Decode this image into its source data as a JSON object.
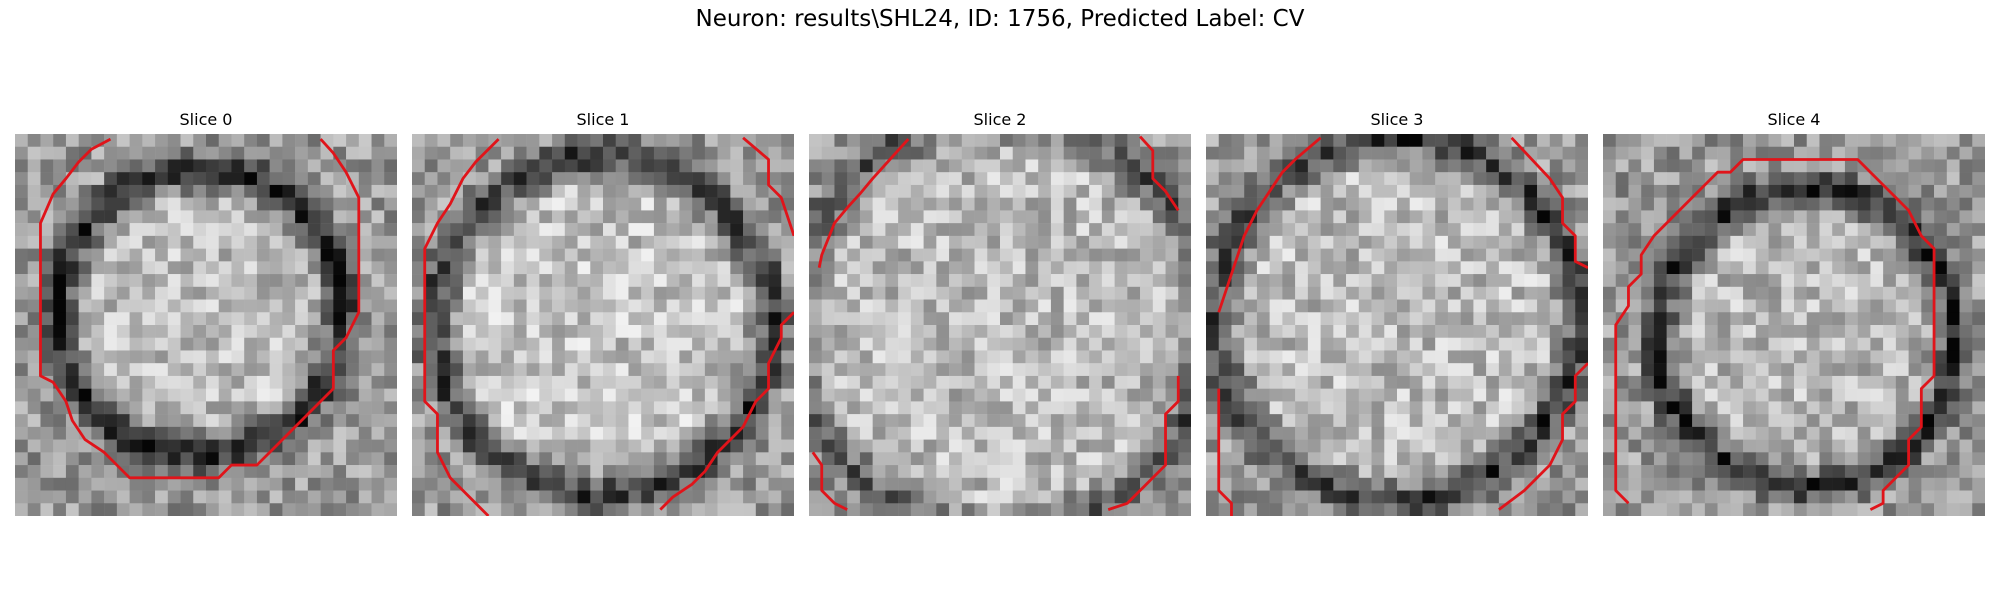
{
  "figure": {
    "title": "Neuron: results\\SHL24, ID: 1756, Predicted Label: CV",
    "contour_color": "#e0141a"
  },
  "panels": [
    {
      "title": "Slice 0"
    },
    {
      "title": "Slice 1"
    },
    {
      "title": "Slice 2"
    },
    {
      "title": "Slice 3"
    },
    {
      "title": "Slice 4"
    }
  ]
}
